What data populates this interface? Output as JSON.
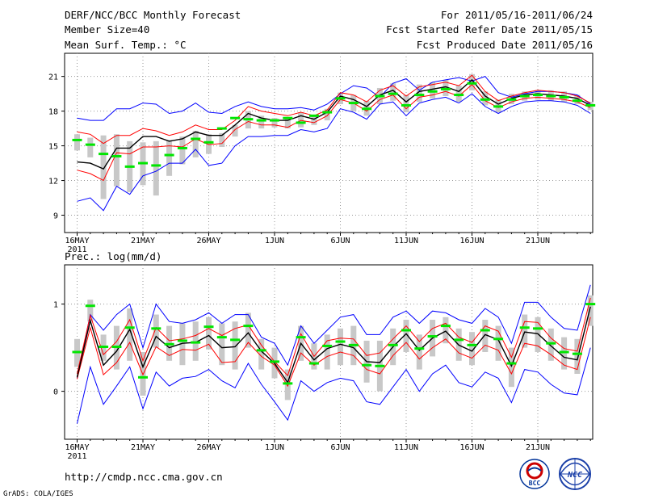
{
  "header": {
    "title": "DERF/NCC/BCC Monthly Forecast",
    "member_size": "Member Size=40",
    "variable": "Mean Surf. Temp.: °C",
    "period": "For 2011/05/16-2011/06/24",
    "started": "Fcst Started Refer Date 2011/05/15",
    "produced": "Fcst Produced Date 2011/05/16"
  },
  "footer": {
    "url": "http://cmdp.ncc.cma.gov.cn",
    "credit": "GrADS: COLA/IGES",
    "logo_bcc": "BCC",
    "logo_ncc": "NCC"
  },
  "colors": {
    "max_min": "#0000ff",
    "spread": "#ff0000",
    "mean": "#000000",
    "median": "#00e600",
    "box": "#c8c8c8"
  },
  "chart_data": [
    {
      "type": "line",
      "title": "Mean Surf. Temp.: °C",
      "ylim": [
        7.5,
        23
      ],
      "yticks": [
        9,
        12,
        15,
        18,
        21
      ],
      "xtick_labels": [
        "16MAY",
        "21MAY",
        "26MAY",
        "1JUN",
        "6JUN",
        "11JUN",
        "16JUN",
        "21JUN"
      ],
      "year_label": "2011",
      "days": 40,
      "series": [
        {
          "name": "max",
          "values": [
            17.4,
            17.2,
            17.2,
            18.2,
            18.2,
            18.7,
            18.6,
            17.8,
            18.0,
            18.7,
            17.9,
            17.8,
            18.4,
            18.8,
            18.4,
            18.2,
            18.2,
            18.3,
            18.1,
            18.6,
            19.5,
            20.2,
            20.0,
            19.2,
            20.4,
            20.8,
            19.8,
            20.5,
            20.7,
            20.9,
            20.6,
            21.0,
            19.6,
            19.2,
            19.5,
            19.7,
            19.7,
            19.6,
            19.4,
            18.6
          ]
        },
        {
          "name": "spread_high",
          "values": [
            16.2,
            16.0,
            15.2,
            15.9,
            15.9,
            16.5,
            16.3,
            15.9,
            16.2,
            16.8,
            16.4,
            16.4,
            17.2,
            18.4,
            18.0,
            17.8,
            17.6,
            17.9,
            17.6,
            18.1,
            19.6,
            19.4,
            18.8,
            19.8,
            20.2,
            19.3,
            20.1,
            20.3,
            20.5,
            20.2,
            21.1,
            19.7,
            18.9,
            19.3,
            19.6,
            19.8,
            19.7,
            19.6,
            19.3,
            18.7
          ]
        },
        {
          "name": "spread_low",
          "values": [
            12.9,
            12.6,
            12.0,
            14.4,
            14.3,
            14.9,
            14.9,
            15.0,
            14.9,
            15.6,
            15.1,
            15.2,
            16.4,
            17.1,
            16.8,
            16.8,
            16.6,
            17.2,
            17.0,
            17.6,
            19.0,
            18.7,
            18.0,
            19.0,
            19.4,
            18.2,
            19.2,
            19.4,
            19.7,
            19.3,
            20.3,
            18.9,
            18.3,
            18.8,
            19.1,
            19.2,
            19.1,
            19.0,
            18.8,
            18.3
          ]
        },
        {
          "name": "min",
          "values": [
            10.2,
            10.5,
            9.4,
            11.5,
            10.8,
            12.4,
            12.8,
            13.5,
            13.5,
            14.7,
            13.3,
            13.5,
            15.0,
            15.8,
            15.8,
            15.9,
            15.9,
            16.4,
            16.2,
            16.5,
            18.2,
            17.9,
            17.3,
            18.6,
            18.8,
            17.6,
            18.7,
            19.0,
            19.2,
            18.7,
            19.5,
            18.4,
            17.8,
            18.4,
            18.8,
            18.9,
            18.9,
            18.8,
            18.5,
            17.8
          ]
        },
        {
          "name": "mean",
          "values": [
            13.6,
            13.5,
            13.0,
            14.8,
            14.8,
            15.8,
            15.8,
            15.4,
            15.6,
            16.2,
            15.9,
            15.9,
            16.8,
            17.8,
            17.4,
            17.2,
            17.2,
            17.6,
            17.3,
            17.9,
            19.3,
            19.0,
            18.4,
            19.4,
            19.8,
            18.8,
            19.7,
            19.9,
            20.1,
            19.7,
            20.7,
            19.3,
            18.6,
            19.1,
            19.4,
            19.5,
            19.4,
            19.3,
            19.1,
            18.5
          ]
        },
        {
          "name": "ensemble_median",
          "values": [
            15.5,
            15.1,
            14.3,
            14.1,
            13.2,
            13.5,
            13.3,
            14.2,
            14.8,
            15.6,
            15.3,
            16.5,
            17.4,
            17.3,
            17.2,
            17.2,
            17.4,
            17.0,
            17.6,
            17.9,
            19.1,
            18.7,
            18.2,
            19.3,
            19.5,
            18.5,
            19.4,
            19.7,
            19.9,
            19.4,
            20.4,
            19.0,
            18.4,
            19.0,
            19.3,
            19.4,
            19.3,
            19.2,
            18.9,
            18.5
          ]
        },
        {
          "name": "box_top",
          "values": [
            16.0,
            15.7,
            15.9,
            16.0,
            15.4,
            15.3,
            15.4,
            15.5,
            15.8,
            16.3,
            16.0,
            16.1,
            16.8,
            18.0,
            17.6,
            17.4,
            17.4,
            17.9,
            17.6,
            18.2,
            19.6,
            19.4,
            18.9,
            20.0,
            20.4,
            19.4,
            20.3,
            20.5,
            20.7,
            20.2,
            21.2,
            19.7,
            19.0,
            19.5,
            19.7,
            19.8,
            19.8,
            19.7,
            19.4,
            18.8
          ]
        },
        {
          "name": "box_bottom",
          "values": [
            14.6,
            14.0,
            10.4,
            11.5,
            11.0,
            11.6,
            10.7,
            12.4,
            13.4,
            14.0,
            14.3,
            14.9,
            15.8,
            16.5,
            16.5,
            16.6,
            16.5,
            16.6,
            16.8,
            17.2,
            18.6,
            18.0,
            17.6,
            18.6,
            18.9,
            17.9,
            18.8,
            19.1,
            19.3,
            18.8,
            19.8,
            18.5,
            17.9,
            18.6,
            18.9,
            19.0,
            18.9,
            18.8,
            18.6,
            18.1
          ]
        }
      ]
    },
    {
      "type": "line",
      "title": "Prec.: log(mm/d)",
      "ylim": [
        -0.55,
        1.45
      ],
      "yticks": [
        0,
        1
      ],
      "xtick_labels": [
        "16MAY",
        "21MAY",
        "26MAY",
        "1JUN",
        "6JUN",
        "11JUN",
        "16JUN",
        "21JUN"
      ],
      "year_label": "2011",
      "days": 40,
      "series": [
        {
          "name": "max",
          "values": [
            0.15,
            0.88,
            0.7,
            0.88,
            1.0,
            0.5,
            1.0,
            0.8,
            0.78,
            0.82,
            0.9,
            0.78,
            0.88,
            0.88,
            0.62,
            0.55,
            0.3,
            0.75,
            0.55,
            0.7,
            0.85,
            0.88,
            0.65,
            0.65,
            0.85,
            0.92,
            0.78,
            0.92,
            0.9,
            0.82,
            0.78,
            0.95,
            0.85,
            0.55,
            1.02,
            1.02,
            0.85,
            0.72,
            0.7,
            1.22
          ]
        },
        {
          "name": "spread_high",
          "values": [
            0.2,
            0.87,
            0.42,
            0.57,
            0.82,
            0.35,
            0.73,
            0.58,
            0.6,
            0.64,
            0.72,
            0.64,
            0.72,
            0.76,
            0.53,
            0.34,
            0.18,
            0.66,
            0.4,
            0.58,
            0.61,
            0.6,
            0.41,
            0.44,
            0.6,
            0.75,
            0.57,
            0.72,
            0.78,
            0.62,
            0.56,
            0.75,
            0.69,
            0.39,
            0.8,
            0.79,
            0.61,
            0.49,
            0.46,
            1.07
          ]
        },
        {
          "name": "spread_low",
          "values": [
            0.14,
            0.73,
            0.19,
            0.33,
            0.56,
            0.19,
            0.51,
            0.41,
            0.48,
            0.47,
            0.54,
            0.33,
            0.34,
            0.56,
            0.4,
            0.3,
            0.06,
            0.44,
            0.3,
            0.4,
            0.45,
            0.41,
            0.25,
            0.2,
            0.41,
            0.56,
            0.37,
            0.5,
            0.6,
            0.44,
            0.38,
            0.53,
            0.47,
            0.2,
            0.55,
            0.52,
            0.42,
            0.3,
            0.25,
            0.85
          ]
        },
        {
          "name": "min",
          "values": [
            -0.37,
            0.28,
            -0.15,
            0.06,
            0.28,
            -0.2,
            0.22,
            0.06,
            0.15,
            0.17,
            0.25,
            0.12,
            0.04,
            0.32,
            0.08,
            -0.12,
            -0.33,
            0.12,
            0.0,
            0.1,
            0.15,
            0.12,
            -0.12,
            -0.15,
            0.05,
            0.25,
            0.0,
            0.2,
            0.3,
            0.1,
            0.05,
            0.22,
            0.15,
            -0.13,
            0.25,
            0.22,
            0.08,
            -0.02,
            -0.04,
            0.5
          ]
        },
        {
          "name": "mean",
          "values": [
            0.16,
            0.81,
            0.3,
            0.46,
            0.71,
            0.28,
            0.63,
            0.5,
            0.55,
            0.56,
            0.64,
            0.5,
            0.51,
            0.67,
            0.46,
            0.32,
            0.1,
            0.55,
            0.36,
            0.49,
            0.54,
            0.5,
            0.34,
            0.33,
            0.51,
            0.66,
            0.47,
            0.61,
            0.69,
            0.53,
            0.46,
            0.65,
            0.59,
            0.29,
            0.68,
            0.66,
            0.52,
            0.39,
            0.36,
            0.97
          ]
        },
        {
          "name": "ensemble_median",
          "values": [
            0.45,
            0.98,
            0.51,
            0.51,
            0.73,
            0.16,
            0.72,
            0.54,
            0.58,
            0.56,
            0.74,
            0.62,
            0.59,
            0.75,
            0.47,
            0.34,
            0.09,
            0.62,
            0.32,
            0.52,
            0.57,
            0.53,
            0.3,
            0.29,
            0.53,
            0.7,
            0.49,
            0.63,
            0.75,
            0.59,
            0.53,
            0.7,
            0.6,
            0.32,
            0.73,
            0.72,
            0.55,
            0.45,
            0.43,
            1.0
          ]
        },
        {
          "name": "box_top",
          "values": [
            0.6,
            1.05,
            0.65,
            0.75,
            0.95,
            0.45,
            0.88,
            0.75,
            0.78,
            0.8,
            0.85,
            0.78,
            0.8,
            0.9,
            0.6,
            0.5,
            0.25,
            0.75,
            0.55,
            0.65,
            0.72,
            0.75,
            0.58,
            0.58,
            0.72,
            0.82,
            0.65,
            0.82,
            0.85,
            0.72,
            0.68,
            0.82,
            0.75,
            0.5,
            0.88,
            0.85,
            0.72,
            0.62,
            0.6,
            1.1
          ]
        },
        {
          "name": "box_bottom",
          "values": [
            0.28,
            0.8,
            0.35,
            0.25,
            0.35,
            -0.05,
            0.5,
            0.35,
            0.3,
            0.35,
            0.48,
            0.3,
            0.25,
            0.5,
            0.25,
            0.15,
            -0.1,
            0.35,
            0.25,
            0.25,
            0.3,
            0.3,
            0.1,
            0.0,
            0.3,
            0.45,
            0.25,
            0.4,
            0.55,
            0.35,
            0.3,
            0.45,
            0.35,
            0.05,
            0.5,
            0.45,
            0.35,
            0.25,
            0.2,
            0.75
          ]
        }
      ]
    }
  ]
}
